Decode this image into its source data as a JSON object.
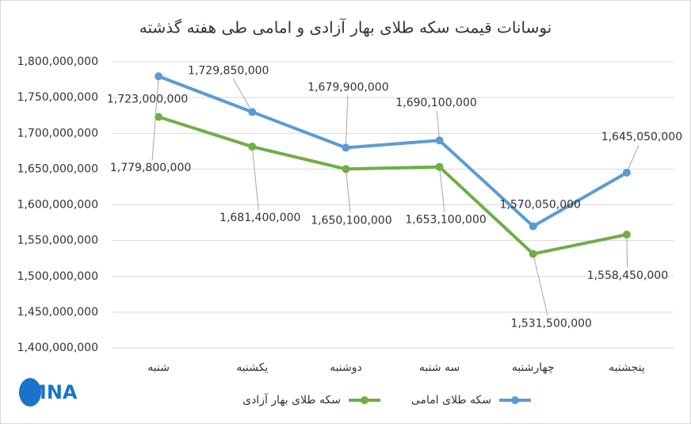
{
  "chart_data": {
    "type": "line",
    "title": "نوسانات قیمت سکه طلای بهار آزادی و امامی طی هفته گذشته",
    "logo": "IMNA",
    "categories": [
      "شنبه",
      "یکشنبه",
      "دوشنبه",
      "سه شنبه",
      "چهارشنبه",
      "پنجشنبه"
    ],
    "series": [
      {
        "name": "سکه طلای بهار آزادی",
        "color": "#70ad47",
        "values": [
          1723000000,
          1681400000,
          1650100000,
          1653100000,
          1531500000,
          1558450000
        ],
        "value_labels": [
          "1,723,000,000",
          "1,681,400,000",
          "1,650,100,000",
          "1,653,100,000",
          "1,531,500,000",
          "1,558,450,000"
        ]
      },
      {
        "name": "سکه طلای امامی",
        "color": "#5b9bd5",
        "values": [
          1779800000,
          1729850000,
          1679900000,
          1690100000,
          1570050000,
          1645050000
        ],
        "value_labels": [
          "1,779,800,000",
          "1,729,850,000",
          "1,679,900,000",
          "1,690,100,000",
          "1,570,050,000",
          "1,645,050,000"
        ]
      }
    ],
    "ylim": [
      1400000000,
      1800000000
    ],
    "yticks": [
      {
        "value": 1400000000,
        "label": "1,400,000,000"
      },
      {
        "value": 1450000000,
        "label": "1,450,000,000"
      },
      {
        "value": 1500000000,
        "label": "1,500,000,000"
      },
      {
        "value": 1550000000,
        "label": "1,550,000,000"
      },
      {
        "value": 1600000000,
        "label": "1,600,000,000"
      },
      {
        "value": 1650000000,
        "label": "1,650,000,000"
      },
      {
        "value": 1700000000,
        "label": "1,700,000,000"
      },
      {
        "value": 1750000000,
        "label": "1,750,000,000"
      },
      {
        "value": 1800000000,
        "label": "1,800,000,000"
      }
    ],
    "grid": true,
    "legend": "bottom"
  }
}
